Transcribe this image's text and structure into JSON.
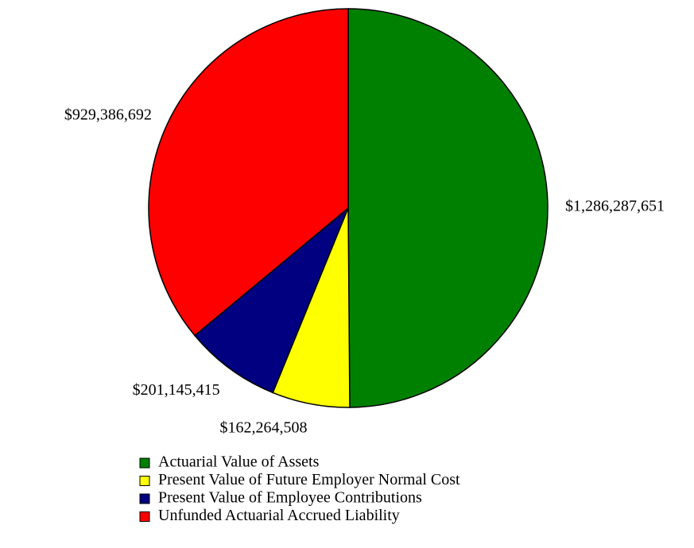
{
  "chart_data": {
    "type": "pie",
    "categories": [
      "Actuarial Value of Assets",
      "Present Value of Future Employer Normal Cost",
      "Present Value of Employee Contributions",
      "Unfunded Actuarial Accrued Liability"
    ],
    "values": [
      1286287651,
      162264508,
      201145415,
      929386692
    ],
    "value_labels": [
      "$1,286,287,651",
      "$162,264,508",
      "$201,145,415",
      "$929,386,692"
    ],
    "colors": [
      "#008000",
      "#ffff00",
      "#000080",
      "#ff0000"
    ]
  }
}
